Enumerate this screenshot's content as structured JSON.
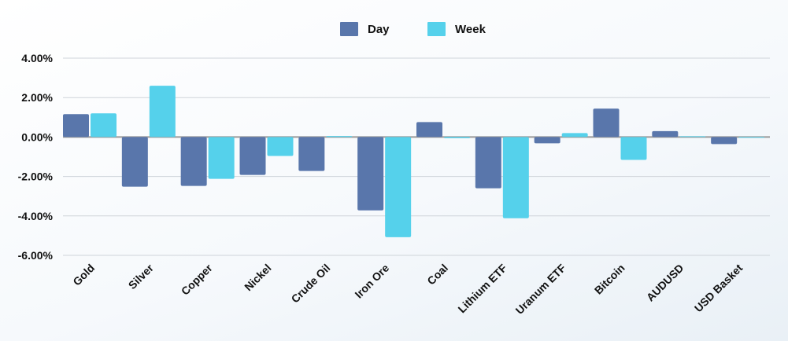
{
  "chart_data": {
    "type": "bar",
    "categories": [
      "Gold",
      "Silver",
      "Copper",
      "Nickel",
      "Crude Oil",
      "Iron Ore",
      "Coal",
      "Lithium ETF",
      "Uranum ETF",
      "Bitcoin",
      "AUDUSD",
      "USD Basket"
    ],
    "series": [
      {
        "name": "Day",
        "color": "#5976ab",
        "values": [
          1.16,
          -2.52,
          -2.48,
          -1.92,
          -1.72,
          -3.72,
          0.76,
          -2.6,
          -0.32,
          1.44,
          0.3,
          -0.36
        ]
      },
      {
        "name": "Week",
        "color": "#55d1eb",
        "values": [
          1.2,
          2.6,
          -2.12,
          -0.96,
          0.05,
          -5.08,
          -0.06,
          -4.12,
          0.2,
          -1.16,
          0.04,
          0.0
        ]
      }
    ],
    "ylim": [
      -6,
      4
    ],
    "yticks": [
      4,
      2,
      0,
      -2,
      -4,
      -6
    ],
    "ytick_labels": [
      "4.00%",
      "2.00%",
      "0.00%",
      "-2.00%",
      "-4.00%",
      "-6.00%"
    ],
    "grid": true,
    "legend": "top-center",
    "title": "",
    "xlabel": "",
    "ylabel": ""
  }
}
